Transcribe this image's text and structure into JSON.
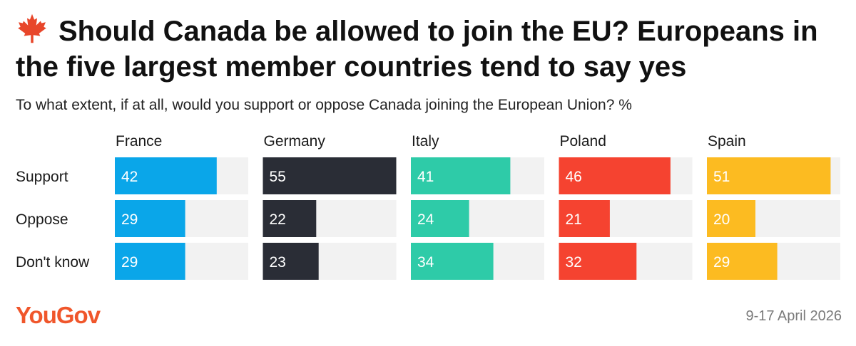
{
  "title": "Should Canada be allowed to join the EU? Europeans in the five largest member countries tend to say yes",
  "title_icon": "maple-leaf-icon",
  "subtitle": "To what extent, if at all, would you support or oppose Canada joining the European Union? %",
  "footer": {
    "logo": "YouGov",
    "date": "9-17 April 2026"
  },
  "colors": {
    "France": "#0aa6e9",
    "Germany": "#2a2d36",
    "Italy": "#2ecba8",
    "Poland": "#f54330",
    "Spain": "#fcbb21",
    "track": "#f2f2f2",
    "brand": "#f0562b",
    "maple": "#e8462a"
  },
  "chart_data": {
    "type": "bar",
    "categories": [
      "Support",
      "Oppose",
      "Don't know"
    ],
    "series": [
      {
        "name": "France",
        "values": [
          42,
          29,
          29
        ]
      },
      {
        "name": "Germany",
        "values": [
          55,
          22,
          23
        ]
      },
      {
        "name": "Italy",
        "values": [
          41,
          24,
          34
        ]
      },
      {
        "name": "Poland",
        "values": [
          46,
          21,
          32
        ]
      },
      {
        "name": "Spain",
        "values": [
          51,
          20,
          29
        ]
      }
    ],
    "xlim": [
      0,
      55
    ]
  }
}
